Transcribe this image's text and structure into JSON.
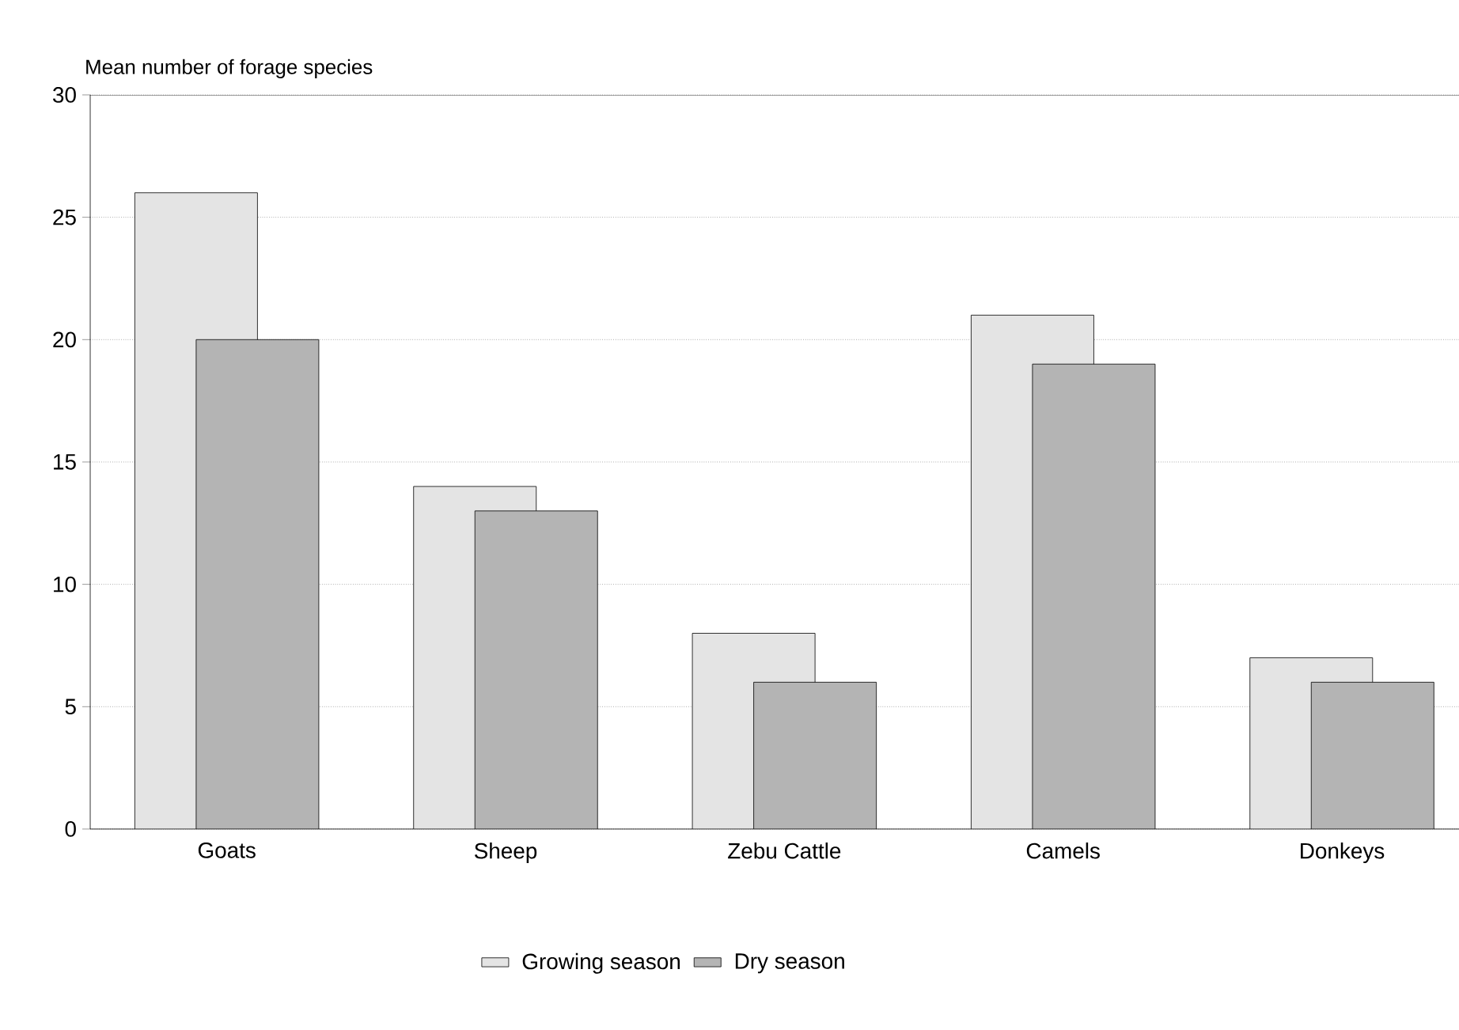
{
  "chart_data": {
    "type": "bar",
    "ylabel": "Mean number of forage species",
    "categories": [
      "Goats",
      "Sheep",
      "Zebu Cattle",
      "Camels",
      "Donkeys"
    ],
    "series": [
      {
        "name": "Growing season",
        "color": "#e4e4e4",
        "values": [
          26,
          14,
          8,
          21,
          7
        ]
      },
      {
        "name": "Dry season",
        "color": "#b4b4b4",
        "values": [
          20,
          13,
          6,
          19,
          6
        ]
      }
    ],
    "ylim": [
      0,
      30
    ],
    "yticks": [
      0,
      5,
      10,
      15,
      20,
      25,
      30
    ],
    "grid": "y",
    "legend": "bottom"
  }
}
